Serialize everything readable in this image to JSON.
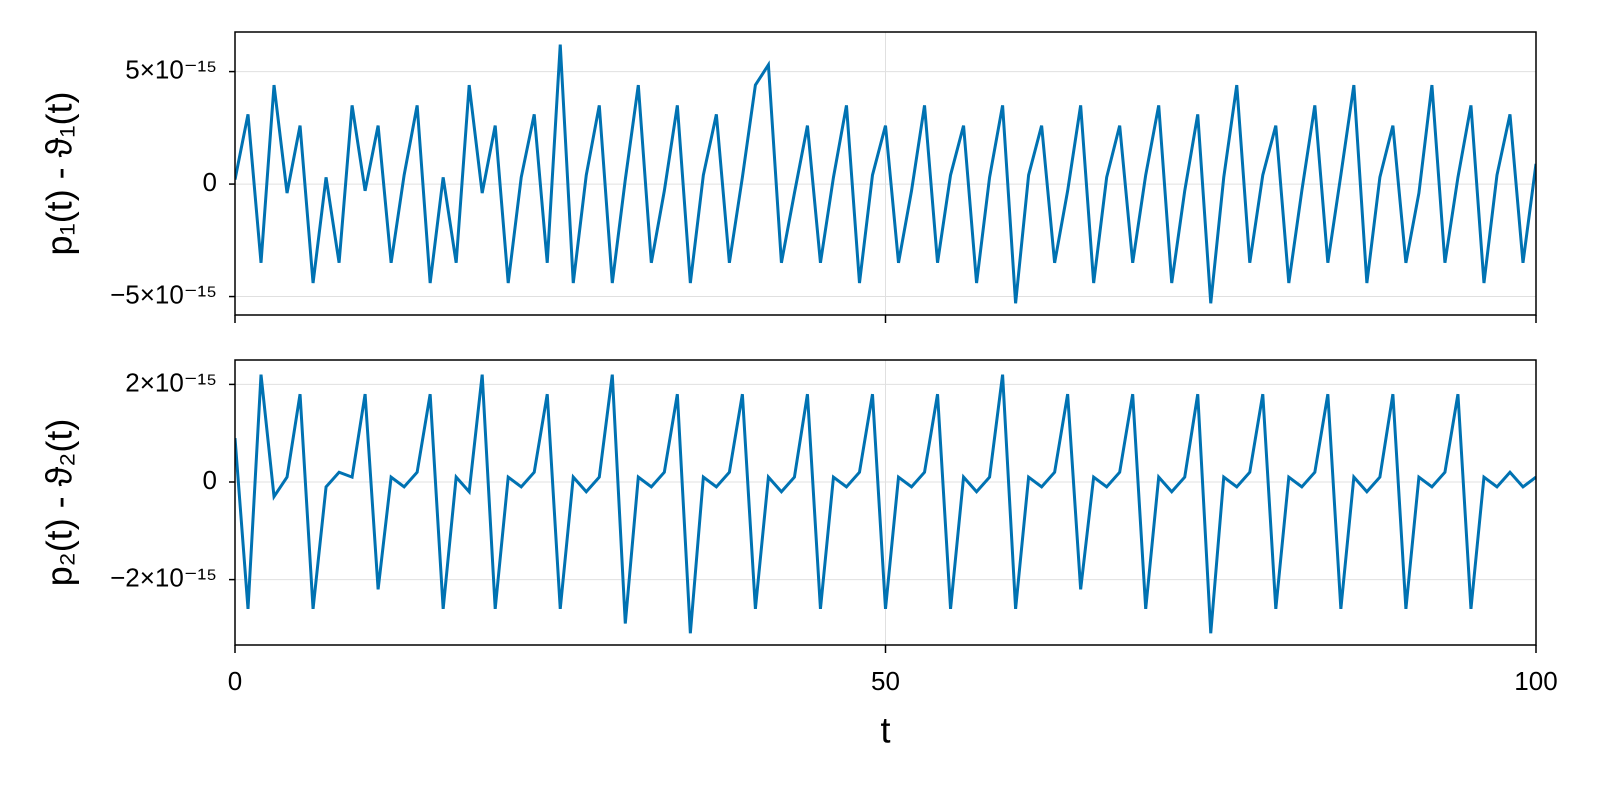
{
  "chart_data": [
    {
      "type": "line",
      "ylabel": "p₁(t) - ϑ₁(t)",
      "color": "#0072b2",
      "grid": true,
      "xlim": [
        0,
        100
      ],
      "xticks": [
        0,
        50,
        100
      ],
      "ylim": [
        -5.82e-15,
        6.76e-15
      ],
      "yticks": [
        {
          "value": -5e-15,
          "label": "−5×10⁻¹⁵"
        },
        0,
        {
          "value": 5e-15,
          "label": "5×10⁻¹⁵"
        }
      ],
      "x": [
        0,
        1,
        2,
        3,
        4,
        5,
        6,
        7,
        8,
        9,
        10,
        11,
        12,
        13,
        14,
        15,
        16,
        17,
        18,
        19,
        20,
        21,
        22,
        23,
        24,
        25,
        26,
        27,
        28,
        29,
        30,
        31,
        32,
        33,
        34,
        35,
        36,
        37,
        38,
        39,
        40,
        41,
        42,
        43,
        44,
        45,
        46,
        47,
        48,
        49,
        50,
        51,
        52,
        53,
        54,
        55,
        56,
        57,
        58,
        59,
        60,
        61,
        62,
        63,
        64,
        65,
        66,
        67,
        68,
        69,
        70,
        71,
        72,
        73,
        74,
        75,
        76,
        77,
        78,
        79,
        80,
        81,
        82,
        83,
        84,
        85,
        86,
        87,
        88,
        89,
        90,
        91,
        92,
        93,
        94,
        95,
        96,
        97,
        98,
        99,
        100
      ],
      "values": [
        2e-16,
        3.1e-15,
        -3.5e-15,
        4.4e-15,
        -4e-16,
        2.6e-15,
        -4.4e-15,
        3e-16,
        -3.5e-15,
        3.5e-15,
        -3e-16,
        2.6e-15,
        -3.5e-15,
        4e-16,
        3.5e-15,
        -4.4e-15,
        3e-16,
        -3.5e-15,
        4.4e-15,
        -4e-16,
        2.6e-15,
        -4.4e-15,
        3e-16,
        3.1e-15,
        -3.5e-15,
        6.2e-15,
        -4.4e-15,
        4e-16,
        3.5e-15,
        -4.4e-15,
        2e-16,
        4.4e-15,
        -3.5e-15,
        -3e-16,
        3.5e-15,
        -4.4e-15,
        4e-16,
        3.1e-15,
        -3.5e-15,
        3e-16,
        4.4e-15,
        5.3e-15,
        -3.5e-15,
        -4e-16,
        2.6e-15,
        -3.5e-15,
        3e-16,
        3.5e-15,
        -4.4e-15,
        4e-16,
        2.6e-15,
        -3.5e-15,
        -3e-16,
        3.5e-15,
        -3.5e-15,
        4e-16,
        2.6e-15,
        -4.4e-15,
        3e-16,
        3.5e-15,
        -5.3e-15,
        4e-16,
        2.6e-15,
        -3.5e-15,
        -3e-16,
        3.5e-15,
        -4.4e-15,
        3e-16,
        2.6e-15,
        -3.5e-15,
        4e-16,
        3.5e-15,
        -4.4e-15,
        -3e-16,
        3.1e-15,
        -5.3e-15,
        3e-16,
        4.4e-15,
        -3.5e-15,
        4e-16,
        2.6e-15,
        -4.4e-15,
        -3e-16,
        3.5e-15,
        -3.5e-15,
        4e-16,
        4.4e-15,
        -4.4e-15,
        3e-16,
        2.6e-15,
        -3.5e-15,
        -4e-16,
        4.4e-15,
        -3.5e-15,
        3e-16,
        3.5e-15,
        -4.4e-15,
        4e-16,
        3.1e-15,
        -3.5e-15,
        9e-16
      ]
    },
    {
      "type": "line",
      "ylabel": "p₂(t) - ϑ₂(t)",
      "xlabel": "t",
      "color": "#0072b2",
      "grid": true,
      "xlim": [
        0,
        100
      ],
      "xticks": [
        0,
        50,
        100
      ],
      "ylim": [
        -3.34e-15,
        2.5e-15
      ],
      "yticks": [
        {
          "value": -2e-15,
          "label": "−2×10⁻¹⁵"
        },
        0,
        {
          "value": 2e-15,
          "label": "2×10⁻¹⁵"
        }
      ],
      "x": [
        0,
        1,
        2,
        3,
        4,
        5,
        6,
        7,
        8,
        9,
        10,
        11,
        12,
        13,
        14,
        15,
        16,
        17,
        18,
        19,
        20,
        21,
        22,
        23,
        24,
        25,
        26,
        27,
        28,
        29,
        30,
        31,
        32,
        33,
        34,
        35,
        36,
        37,
        38,
        39,
        40,
        41,
        42,
        43,
        44,
        45,
        46,
        47,
        48,
        49,
        50,
        51,
        52,
        53,
        54,
        55,
        56,
        57,
        58,
        59,
        60,
        61,
        62,
        63,
        64,
        65,
        66,
        67,
        68,
        69,
        70,
        71,
        72,
        73,
        74,
        75,
        76,
        77,
        78,
        79,
        80,
        81,
        82,
        83,
        84,
        85,
        86,
        87,
        88,
        89,
        90,
        91,
        92,
        93,
        94,
        95,
        96,
        97,
        98,
        99,
        100
      ],
      "values": [
        9e-16,
        -2.6e-15,
        2.2e-15,
        -3e-16,
        1e-16,
        1.8e-15,
        -2.6e-15,
        -1e-16,
        2e-16,
        1e-16,
        1.8e-15,
        -2.2e-15,
        1e-16,
        -1e-16,
        2e-16,
        1.8e-15,
        -2.6e-15,
        1e-16,
        -2e-16,
        2.2e-15,
        -2.6e-15,
        1e-16,
        -1e-16,
        2e-16,
        1.8e-15,
        -2.6e-15,
        1e-16,
        -2e-16,
        1e-16,
        2.2e-15,
        -2.9e-15,
        1e-16,
        -1e-16,
        2e-16,
        1.8e-15,
        -3.1e-15,
        1e-16,
        -1e-16,
        2e-16,
        1.8e-15,
        -2.6e-15,
        1e-16,
        -2e-16,
        1e-16,
        1.8e-15,
        -2.6e-15,
        1e-16,
        -1e-16,
        2e-16,
        1.8e-15,
        -2.6e-15,
        1e-16,
        -1e-16,
        2e-16,
        1.8e-15,
        -2.6e-15,
        1e-16,
        -2e-16,
        1e-16,
        2.2e-15,
        -2.6e-15,
        1e-16,
        -1e-16,
        2e-16,
        1.8e-15,
        -2.2e-15,
        1e-16,
        -1e-16,
        2e-16,
        1.8e-15,
        -2.6e-15,
        1e-16,
        -2e-16,
        1e-16,
        1.8e-15,
        -3.1e-15,
        1e-16,
        -1e-16,
        2e-16,
        1.8e-15,
        -2.6e-15,
        1e-16,
        -1e-16,
        2e-16,
        1.8e-15,
        -2.6e-15,
        1e-16,
        -2e-16,
        1e-16,
        1.8e-15,
        -2.6e-15,
        1e-16,
        -1e-16,
        2e-16,
        1.8e-15,
        -2.6e-15,
        1e-16,
        -1e-16,
        2e-16,
        -1e-16,
        1e-16
      ]
    }
  ]
}
